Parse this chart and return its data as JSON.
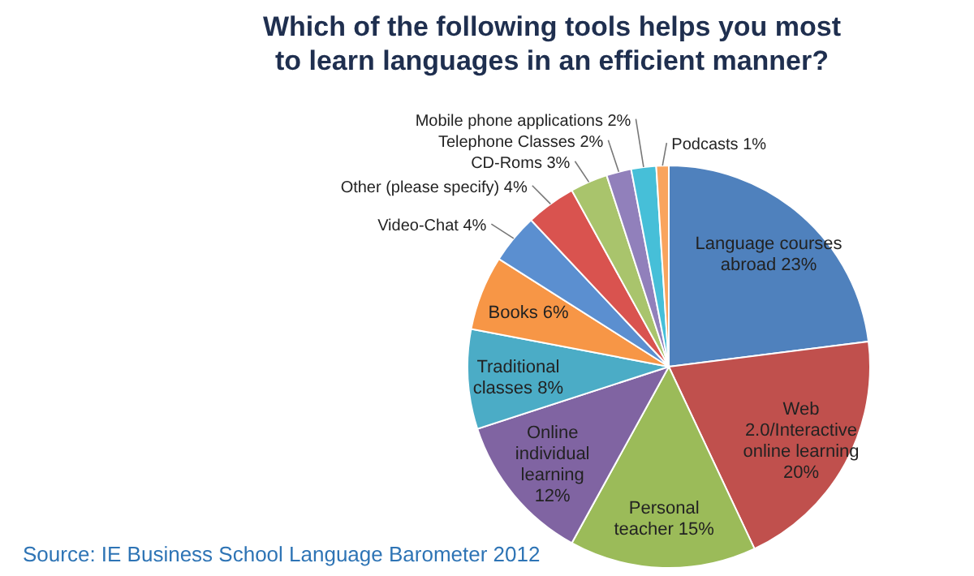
{
  "chart_data": {
    "type": "pie",
    "title": "Which of the following tools helps you most to learn languages in an efficient manner?",
    "categories": [
      "Language courses abroad",
      "Web 2.0/Interactive online learning",
      "Personal teacher",
      "Online individual learning",
      "Traditional classes",
      "Books",
      "Video-Chat",
      "Other (please specify)",
      "CD-Roms",
      "Telephone Classes",
      "Mobile phone applications",
      "Podcasts"
    ],
    "values": [
      23,
      20,
      15,
      12,
      8,
      6,
      4,
      4,
      3,
      2,
      2,
      1
    ],
    "value_labels": [
      "23%",
      "20%",
      "15%",
      "12%",
      "8%",
      "6%",
      "4%",
      "4%",
      "3%",
      "2%",
      "2%",
      "1%"
    ],
    "colors": [
      "#4f81bd",
      "#c0504d",
      "#9bbb59",
      "#8064a2",
      "#4bacc6",
      "#f79646",
      "#5b8fd0",
      "#d9534f",
      "#a9c46c",
      "#9180bb",
      "#46bfd8",
      "#f9a45e"
    ],
    "annotations": [
      "Source: IE Business School Language Barometer 2012"
    ]
  }
}
